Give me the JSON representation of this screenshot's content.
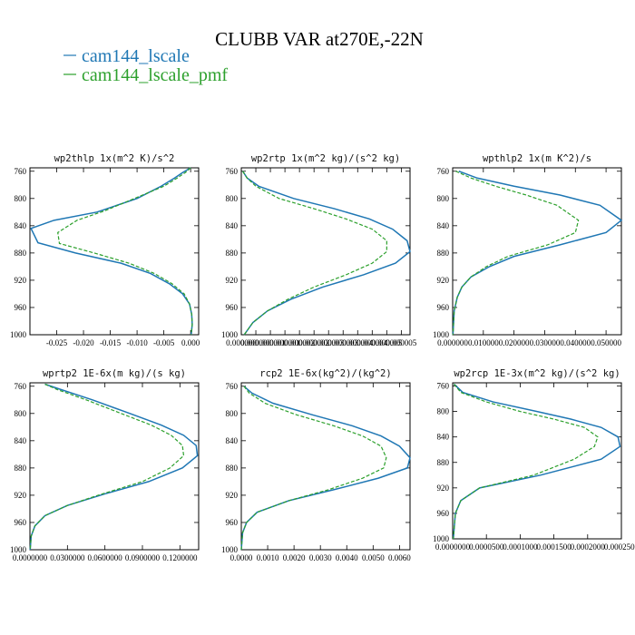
{
  "figure_title": "CLUBB VAR at270E,-22N",
  "legend": [
    {
      "label": "cam144_lscale",
      "color": "#1f77b4",
      "dash": "solid"
    },
    {
      "label": "cam144_lscale_pmf",
      "color": "#2ca02c",
      "dash": "dashed"
    }
  ],
  "chart_data": [
    {
      "type": "line",
      "title": "wp2thlp   1x(m^2 K)/s^2",
      "ylim": [
        1000,
        755
      ],
      "yticks": [
        760,
        800,
        840,
        880,
        920,
        960,
        1000
      ],
      "xlim": [
        -0.03,
        0.0015
      ],
      "xtick_values": [
        -0.025,
        -0.02,
        -0.015,
        -0.01,
        -0.005,
        0.0
      ],
      "xtick_labels": [
        "-0.025",
        "-0.020",
        "-0.015",
        "-0.010",
        "-0.005",
        "0.000"
      ],
      "series": [
        {
          "name": "cam144_lscale",
          "x": [
            0.0,
            -0.0015,
            -0.003,
            -0.0055,
            -0.01,
            -0.0175,
            -0.0255,
            -0.0298,
            -0.0285,
            -0.0215,
            -0.013,
            -0.0075,
            -0.004,
            -0.0015,
            -0.0002,
            0.0002,
            0.0003,
            0.0001
          ],
          "y": [
            755,
            762,
            770,
            782,
            800,
            820,
            832,
            844,
            865,
            880,
            895,
            910,
            925,
            940,
            955,
            970,
            985,
            1000
          ]
        },
        {
          "name": "cam144_lscale_pmf",
          "x": [
            0.0,
            -0.001,
            -0.0025,
            -0.005,
            -0.0105,
            -0.016,
            -0.0212,
            -0.0248,
            -0.0245,
            -0.018,
            -0.0115,
            -0.0068,
            -0.0035,
            -0.0012,
            -0.0002,
            0.0002,
            0.0003,
            0.0001
          ],
          "y": [
            755,
            762,
            770,
            782,
            800,
            818,
            832,
            850,
            866,
            880,
            895,
            910,
            925,
            940,
            955,
            970,
            985,
            1000
          ]
        }
      ]
    },
    {
      "type": "line",
      "title": "wp2rtp   1x(m^2 kg)/(s^2 kg)",
      "ylim": [
        1000,
        755
      ],
      "yticks": [
        760,
        800,
        840,
        880,
        920,
        960,
        1000
      ],
      "xlim": [
        0.0,
        5.8e-06
      ],
      "xtick_values": [
        0.0,
        5e-07,
        1e-06,
        1.5e-06,
        2e-06,
        2.5e-06,
        3e-06,
        3.5e-06,
        4e-06,
        4.5e-06,
        5e-06,
        5.5e-06
      ],
      "xtick_labels": [
        "0.000000",
        "0.000000",
        "0.000001",
        "0.000001",
        "0.000002",
        "0.000002",
        "0.000003",
        "0.000003",
        "0.000004",
        "0.000004",
        "0.000005",
        "0.000005"
      ],
      "series": [
        {
          "name": "cam144_lscale",
          "x": [
            5e-08,
            2e-07,
            6e-07,
            1.8e-06,
            3.2e-06,
            4.4e-06,
            5.2e-06,
            5.7e-06,
            5.8e-06,
            5.3e-06,
            4.2e-06,
            2.8e-06,
            1.7e-06,
            9e-07,
            4e-07,
            1e-07
          ],
          "y": [
            760,
            770,
            782,
            800,
            815,
            830,
            845,
            862,
            878,
            895,
            912,
            930,
            948,
            965,
            982,
            1000
          ]
        },
        {
          "name": "cam144_lscale_pmf",
          "x": [
            5e-08,
            2e-07,
            5e-07,
            1.3e-06,
            2.5e-06,
            3.6e-06,
            4.5e-06,
            5e-06,
            5e-06,
            4.5e-06,
            3.6e-06,
            2.5e-06,
            1.6e-06,
            9e-07,
            4e-07,
            1e-07
          ],
          "y": [
            760,
            770,
            782,
            800,
            815,
            830,
            845,
            862,
            878,
            895,
            912,
            930,
            948,
            965,
            982,
            1000
          ]
        }
      ]
    },
    {
      "type": "line",
      "title": "wpthlp2   1x(m K^2)/s",
      "ylim": [
        1000,
        755
      ],
      "yticks": [
        760,
        800,
        840,
        880,
        920,
        960,
        1000
      ],
      "xlim": [
        0.0,
        0.055
      ],
      "xtick_values": [
        0.0,
        0.01,
        0.02,
        0.03,
        0.04,
        0.05
      ],
      "xtick_labels": [
        "0.000000",
        "0.010000",
        "0.020000",
        "0.030000",
        "0.040000",
        "0.050000"
      ],
      "series": [
        {
          "name": "cam144_lscale",
          "x": [
            0.002,
            0.008,
            0.02,
            0.035,
            0.048,
            0.055,
            0.05,
            0.035,
            0.02,
            0.012,
            0.006,
            0.003,
            0.0015,
            0.0005,
            0.0001
          ],
          "y": [
            760,
            770,
            782,
            795,
            810,
            832,
            850,
            868,
            885,
            900,
            915,
            930,
            945,
            965,
            1000
          ]
        },
        {
          "name": "cam144_lscale_pmf",
          "x": [
            0.001,
            0.006,
            0.014,
            0.024,
            0.034,
            0.041,
            0.04,
            0.031,
            0.018,
            0.011,
            0.006,
            0.003,
            0.0015,
            0.0005,
            0.0001
          ],
          "y": [
            760,
            770,
            782,
            795,
            810,
            832,
            850,
            868,
            885,
            900,
            915,
            930,
            945,
            965,
            1000
          ]
        }
      ]
    },
    {
      "type": "line",
      "title": "wprtp2   1E-6x(m kg)/(s kg)",
      "ylim": [
        1000,
        755
      ],
      "yticks": [
        760,
        800,
        840,
        880,
        920,
        960,
        1000
      ],
      "xlim": [
        0.0,
        0.135
      ],
      "xtick_values": [
        0.0,
        0.03,
        0.06,
        0.09,
        0.12
      ],
      "xtick_labels": [
        "0.0000000",
        "0.0300000",
        "0.0600000",
        "0.0900000",
        "0.1200000"
      ],
      "series": [
        {
          "name": "cam144_lscale",
          "x": [
            0.012,
            0.025,
            0.05,
            0.08,
            0.105,
            0.123,
            0.133,
            0.134,
            0.122,
            0.095,
            0.06,
            0.03,
            0.012,
            0.004,
            0.001,
            0.0002
          ],
          "y": [
            757,
            765,
            780,
            800,
            817,
            832,
            847,
            862,
            880,
            900,
            918,
            935,
            950,
            965,
            980,
            1000
          ]
        },
        {
          "name": "cam144_lscale_pmf",
          "x": [
            0.012,
            0.022,
            0.045,
            0.073,
            0.097,
            0.113,
            0.122,
            0.123,
            0.112,
            0.09,
            0.058,
            0.03,
            0.012,
            0.004,
            0.001,
            0.0002
          ],
          "y": [
            757,
            765,
            780,
            800,
            817,
            832,
            847,
            862,
            880,
            900,
            918,
            935,
            950,
            965,
            980,
            1000
          ]
        }
      ]
    },
    {
      "type": "line",
      "title": "rcp2   1E-6x(kg^2)/(kg^2)",
      "ylim": [
        1000,
        755
      ],
      "yticks": [
        760,
        800,
        840,
        880,
        920,
        960,
        1000
      ],
      "xlim": [
        0.0,
        0.0064
      ],
      "xtick_values": [
        0.0,
        0.001,
        0.002,
        0.003,
        0.004,
        0.005,
        0.006
      ],
      "xtick_labels": [
        "0.0000",
        "0.0010",
        "0.0020",
        "0.0030",
        "0.0040",
        "0.0050",
        "0.0060"
      ],
      "series": [
        {
          "name": "cam144_lscale",
          "x": [
            0.0001,
            0.0004,
            0.0012,
            0.0027,
            0.0042,
            0.0053,
            0.006,
            0.0064,
            0.0063,
            0.0052,
            0.0035,
            0.0018,
            0.0006,
            0.0002,
            5e-05,
            0.0
          ],
          "y": [
            760,
            770,
            785,
            802,
            818,
            833,
            848,
            865,
            880,
            895,
            912,
            928,
            945,
            960,
            975,
            1000
          ]
        },
        {
          "name": "cam144_lscale_pmf",
          "x": [
            0.0001,
            0.0003,
            0.0009,
            0.0021,
            0.0035,
            0.0046,
            0.0053,
            0.0055,
            0.0054,
            0.0046,
            0.0033,
            0.0018,
            0.0006,
            0.0002,
            5e-05,
            0.0
          ],
          "y": [
            760,
            770,
            785,
            802,
            818,
            833,
            848,
            865,
            880,
            895,
            912,
            928,
            945,
            960,
            975,
            1000
          ]
        }
      ]
    },
    {
      "type": "line",
      "title": "wp2rcp   1E-3x(m^2 kg)/(s^2 kg)",
      "ylim": [
        1000,
        755
      ],
      "yticks": [
        760,
        800,
        840,
        880,
        920,
        960,
        1000
      ],
      "xlim": [
        0.0,
        0.00025
      ],
      "xtick_values": [
        0.0,
        5e-05,
        0.0001,
        0.00015,
        0.0002,
        0.00025
      ],
      "xtick_labels": [
        "0.0000000",
        "0.0000500",
        "0.0001000",
        "0.0001500",
        "0.0002000",
        "0.0002500"
      ],
      "series": [
        {
          "name": "cam144_lscale",
          "x": [
            2e-06,
            1.5e-05,
            6e-05,
            0.000125,
            0.000175,
            0.00022,
            0.000245,
            0.000248,
            0.00022,
            0.00013,
            4e-05,
            1.2e-05,
            4e-06,
            1e-06
          ],
          "y": [
            757,
            770,
            785,
            800,
            812,
            825,
            840,
            855,
            875,
            900,
            920,
            940,
            960,
            1000
          ]
        },
        {
          "name": "cam144_lscale_pmf",
          "x": [
            2e-06,
            1.2e-05,
            5e-05,
            0.0001,
            0.00015,
            0.000195,
            0.000215,
            0.00021,
            0.00018,
            0.00012,
            4e-05,
            1.2e-05,
            4e-06,
            1e-06
          ],
          "y": [
            757,
            770,
            785,
            800,
            812,
            825,
            840,
            855,
            875,
            900,
            920,
            940,
            960,
            1000
          ]
        }
      ]
    }
  ]
}
